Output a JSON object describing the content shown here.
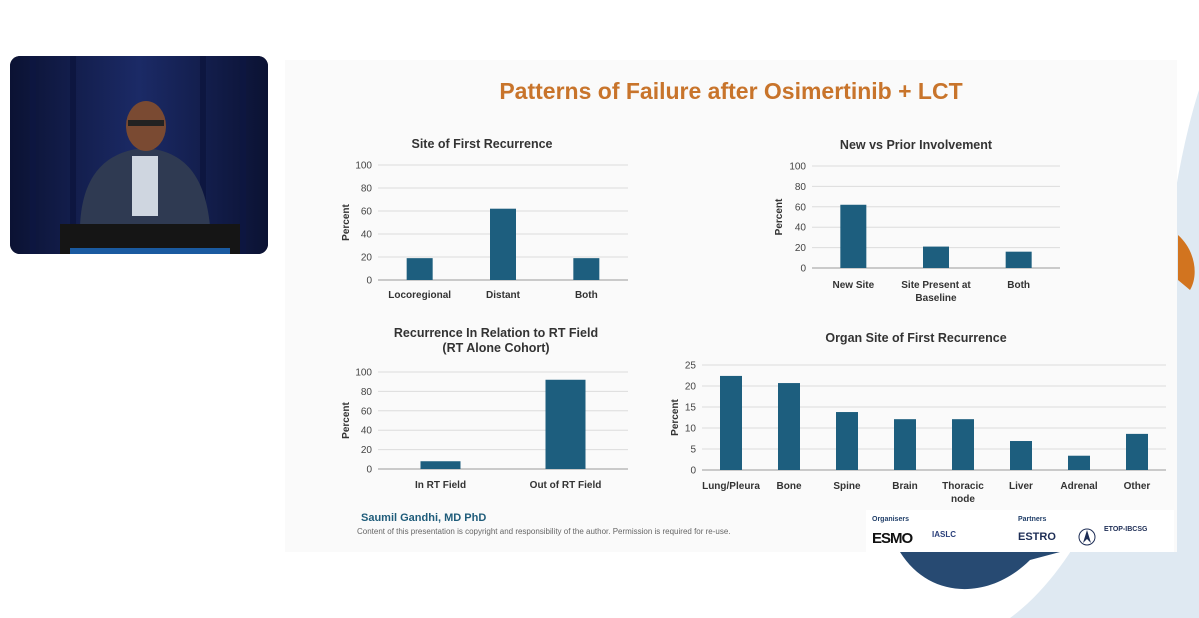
{
  "slide": {
    "title": "Patterns of Failure after Osimertinib + LCT",
    "author": "Saumil Gandhi, MD PhD",
    "copyright": "Content of this presentation is copyright and responsibility of the author. Permission is required for re-use."
  },
  "sponsors": {
    "organisers_label": "Organisers",
    "partners_label": "Partners",
    "logo_esmo": "ESMO",
    "logo_iaslc": "IASLC",
    "logo_estro": "ESTRO",
    "logo_etop": "ETOP-IBCSG"
  },
  "colors": {
    "bar": "#1d5e7e",
    "title": "#c8742b"
  },
  "chart_data": [
    {
      "type": "bar",
      "title": "Site of First Recurrence",
      "ylabel": "Percent",
      "ylim": [
        0,
        100
      ],
      "yticks": [
        "0",
        "20",
        "40",
        "60",
        "80",
        "100"
      ],
      "categories": [
        [
          "Locoregional"
        ],
        [
          "Distant"
        ],
        [
          "Both"
        ]
      ],
      "values": [
        19,
        62,
        19
      ],
      "grid": true
    },
    {
      "type": "bar",
      "title": "New vs Prior Involvement",
      "ylabel": "Percent",
      "ylim": [
        0,
        100
      ],
      "yticks": [
        "0",
        "20",
        "40",
        "60",
        "80",
        "100"
      ],
      "categories": [
        [
          "New Site"
        ],
        [
          "Site Present at",
          "Baseline"
        ],
        [
          "Both"
        ]
      ],
      "values": [
        62,
        21,
        16
      ],
      "grid": true
    },
    {
      "type": "bar",
      "title": [
        "Recurrence In Relation to RT Field",
        "(RT Alone Cohort)"
      ],
      "ylabel": "Percent",
      "ylim": [
        0,
        100
      ],
      "yticks": [
        "0",
        "20",
        "40",
        "60",
        "80",
        "100"
      ],
      "categories": [
        [
          "In RT Field"
        ],
        [
          "Out of RT Field"
        ]
      ],
      "values": [
        8,
        92
      ],
      "grid": true
    },
    {
      "type": "bar",
      "title": "Organ Site of First Recurrence",
      "ylabel": "Percent",
      "ylim": [
        0,
        25
      ],
      "yticks": [
        "0",
        "5",
        "10",
        "15",
        "20",
        "25"
      ],
      "categories": [
        [
          "Lung/Pleura"
        ],
        [
          "Bone"
        ],
        [
          "Spine"
        ],
        [
          "Brain"
        ],
        [
          "Thoracic",
          "node"
        ],
        [
          "Liver"
        ],
        [
          "Adrenal"
        ],
        [
          "Other"
        ]
      ],
      "values": [
        22.4,
        20.7,
        13.8,
        12.1,
        12.1,
        6.9,
        3.4,
        8.6
      ],
      "grid": true
    }
  ]
}
